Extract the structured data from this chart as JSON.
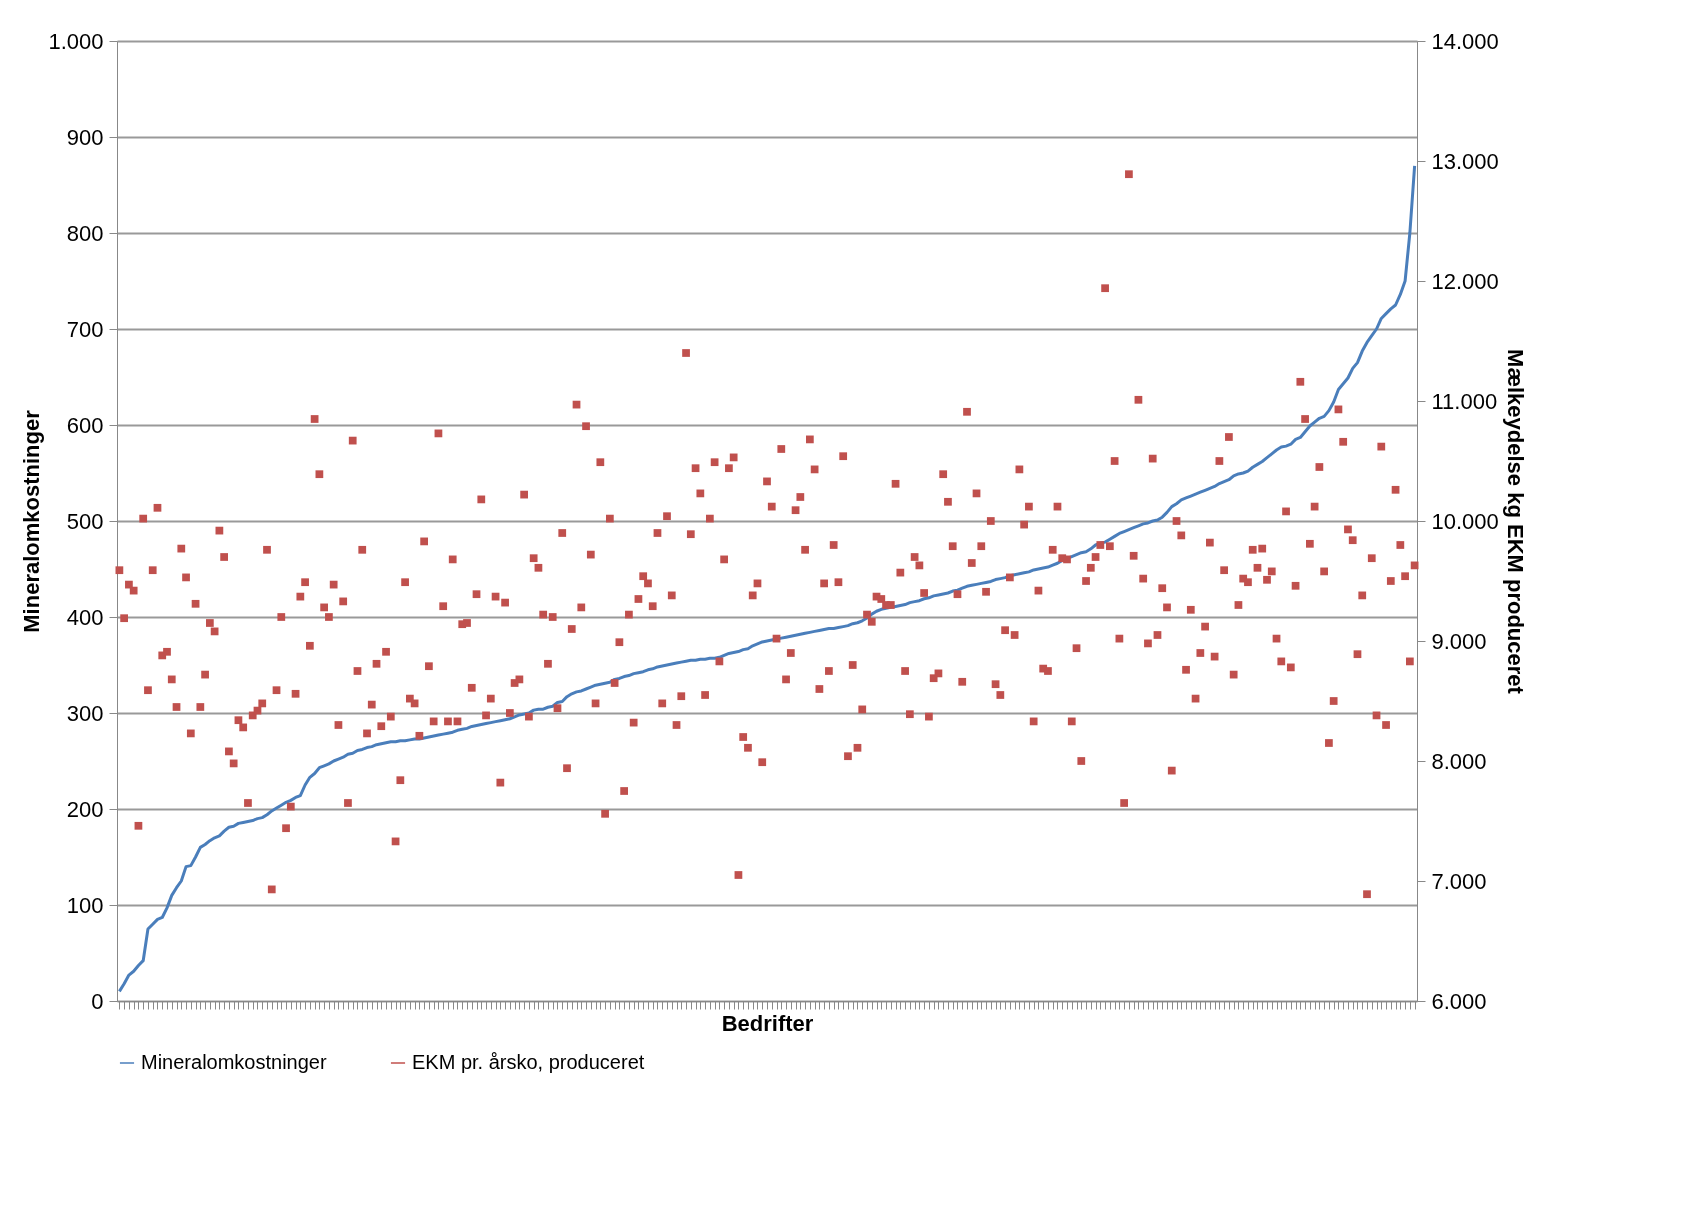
{
  "chart_data": {
    "type": "line",
    "xlabel": "Bedrifter",
    "ylabel": "Mineralomkostninger",
    "y2label": "Mælkeydelse  kg EKM produceret",
    "categories": [
      null,
      null,
      null,
      null,
      null,
      null,
      null,
      null,
      null,
      null,
      null,
      null,
      null,
      null,
      null,
      null,
      null,
      null,
      null,
      null,
      null,
      null,
      null,
      null,
      null,
      null,
      null,
      null,
      null,
      null,
      null,
      null,
      null,
      null,
      null,
      null,
      null,
      null,
      null,
      null,
      null,
      null,
      null,
      null,
      null,
      null,
      null,
      null,
      null,
      null,
      null,
      null,
      null,
      null,
      null,
      null,
      null,
      null,
      null,
      null,
      null,
      null,
      null,
      null,
      null,
      null,
      null,
      null,
      null,
      null,
      null,
      null,
      null,
      null,
      null,
      null,
      null,
      null,
      null,
      null,
      null,
      null,
      null,
      null,
      null,
      null,
      null,
      null,
      null,
      null,
      null,
      null,
      null,
      null,
      null,
      null,
      null,
      null,
      null,
      null,
      null,
      null,
      null,
      null,
      null,
      null,
      null,
      null,
      null,
      null,
      null,
      null,
      null,
      null,
      null,
      null,
      null,
      null,
      null,
      null,
      null,
      null,
      null,
      null,
      null,
      null,
      null,
      null,
      null,
      null,
      null,
      null,
      null,
      null,
      null,
      null,
      null,
      null,
      null,
      null,
      null,
      null,
      null,
      null,
      null,
      null,
      null,
      null,
      null,
      null,
      null,
      null,
      null,
      null,
      null,
      null,
      null,
      null,
      null,
      null,
      null,
      null,
      null,
      null,
      null,
      null,
      null,
      null,
      null,
      null,
      null,
      null,
      null,
      null,
      null,
      null,
      null,
      null,
      null,
      null,
      null,
      null,
      null,
      null,
      null,
      null,
      null,
      null,
      null,
      null,
      null,
      null,
      null,
      null,
      null,
      null,
      null,
      null,
      null,
      null,
      null,
      null,
      null,
      null,
      null,
      null,
      null,
      null,
      null,
      null,
      null,
      null,
      null,
      null,
      null,
      null,
      null,
      null,
      null,
      null,
      null,
      null,
      null,
      null,
      null,
      null,
      null,
      null,
      null,
      null,
      null,
      null,
      null,
      null,
      null,
      null,
      null,
      null,
      null,
      null,
      null,
      null,
      null,
      null,
      null,
      null,
      null,
      null,
      null,
      null,
      null,
      null,
      null,
      null,
      null,
      null,
      null,
      null,
      null,
      null,
      null,
      null,
      null,
      null,
      null,
      null,
      null,
      null,
      null,
      null,
      null,
      null,
      null
    ],
    "series": [
      {
        "name": "Mineralomkostninger",
        "color": "#4a7ebb",
        "marker": "none",
        "line_style": "solid",
        "values": [
          10,
          18,
          27,
          31,
          37,
          42,
          75,
          80,
          85,
          87,
          97,
          110,
          118,
          125,
          140,
          141,
          150,
          160,
          163,
          167,
          170,
          172,
          177,
          181,
          182,
          185,
          186,
          187,
          188,
          190,
          191,
          194,
          198,
          201,
          204,
          207,
          209,
          212,
          214,
          225,
          233,
          237,
          243,
          245,
          247,
          250,
          252,
          254,
          257,
          258,
          261,
          262,
          264,
          265,
          267,
          268,
          269,
          270,
          270,
          271,
          271,
          272,
          273,
          273,
          274,
          275,
          276,
          277,
          278,
          279,
          280,
          282,
          283,
          284,
          286,
          287,
          288,
          289,
          290,
          291,
          292,
          293,
          294,
          296,
          298,
          299,
          300,
          303,
          304,
          304,
          306,
          307,
          311,
          312,
          317,
          320,
          322,
          323,
          325,
          327,
          329,
          330,
          331,
          332,
          335,
          336,
          338,
          339,
          341,
          342,
          343,
          345,
          346,
          348,
          349,
          350,
          351,
          352,
          353,
          354,
          355,
          355,
          356,
          356,
          357,
          357,
          358,
          360,
          362,
          363,
          364,
          366,
          367,
          370,
          372,
          374,
          375,
          376,
          377,
          378,
          379,
          380,
          381,
          382,
          383,
          384,
          385,
          386,
          387,
          388,
          388,
          389,
          390,
          391,
          393,
          394,
          396,
          399,
          403,
          406,
          408,
          409,
          410,
          411,
          412,
          413,
          415,
          416,
          417,
          419,
          420,
          422,
          423,
          424,
          425,
          427,
          428,
          430,
          432,
          433,
          434,
          435,
          436,
          437,
          439,
          440,
          441,
          443,
          444,
          445,
          446,
          447,
          449,
          450,
          451,
          452,
          454,
          456,
          459,
          461,
          463,
          465,
          467,
          468,
          471,
          475,
          477,
          478,
          481,
          484,
          487,
          489,
          491,
          493,
          495,
          497,
          498,
          500,
          501,
          504,
          509,
          515,
          518,
          522,
          524,
          526,
          528,
          530,
          532,
          534,
          536,
          539,
          541,
          543,
          547,
          549,
          550,
          552,
          556,
          559,
          562,
          566,
          570,
          574,
          577,
          578,
          580,
          585,
          587,
          593,
          599,
          603,
          607,
          609,
          615,
          624,
          637,
          643,
          649,
          659,
          665,
          677,
          686,
          693,
          700,
          711,
          716,
          721,
          725,
          736,
          750,
          800,
          870
        ]
      },
      {
        "name": "EKM pr. årsko, produceret",
        "type": "scatter",
        "axis": "y2",
        "color": "#c0504d",
        "marker": "square",
        "values": [
          9590,
          9190,
          9470,
          9420,
          7460,
          10020,
          8590,
          9590,
          10110,
          8880,
          8910,
          8680,
          8450,
          9770,
          9530,
          8230,
          9310,
          8450,
          8720,
          9150,
          9080,
          9920,
          9700,
          8080,
          7980,
          8340,
          8280,
          7650,
          8380,
          8420,
          8480,
          9760,
          6930,
          8590,
          9200,
          7440,
          7620,
          8560,
          9370,
          9490,
          8960,
          10850,
          10390,
          9280,
          9200,
          9470,
          8300,
          9330,
          7650,
          10670,
          8750,
          9760,
          8230,
          8470,
          8810,
          8290,
          8910,
          8370,
          7330,
          7840,
          9490,
          8520,
          8480,
          8210,
          9830,
          8790,
          8330,
          10730,
          9290,
          8330,
          9680,
          8330,
          9140,
          9150,
          8610,
          9390,
          10180,
          8380,
          8520,
          9370,
          7820,
          9320,
          8400,
          8650,
          8680,
          10220,
          8370,
          9690,
          9610,
          9220,
          8810,
          9200,
          8440,
          9900,
          7940,
          9100,
          10970,
          9280,
          10790,
          9720,
          8480,
          10490,
          7560,
          10020,
          8650,
          8990,
          7750,
          9220,
          8320,
          9350,
          9540,
          9480,
          9290,
          9900,
          8480,
          10040,
          9380,
          8300,
          8540,
          11400,
          9890,
          10440,
          10230,
          8550,
          10020,
          10490,
          8830,
          9680,
          10440,
          10530,
          7050,
          8200,
          8110,
          9380,
          9480,
          7990,
          10330,
          10120,
          9020,
          10600,
          8680,
          8900,
          10090,
          10200,
          9760,
          10680,
          10430,
          8600,
          9480,
          8750,
          9800,
          9490,
          10540,
          8040,
          8800,
          8110,
          8430,
          9220,
          9160,
          9370,
          9350,
          9300,
          9300,
          10310,
          9570,
          8750,
          8390,
          9700,
          9630,
          9400,
          8370,
          8690,
          8730,
          10390,
          10160,
          9790,
          9390,
          8660,
          10910,
          9650,
          10230,
          9790,
          9410,
          10000,
          8640,
          8550,
          9090,
          9530,
          9050,
          10430,
          9970,
          10120,
          8330,
          9420,
          8770,
          8750,
          9760,
          10120,
          9690,
          9680,
          8330,
          8940,
          8000,
          9500,
          9610,
          9700,
          9800,
          11940,
          9790,
          10500,
          9020,
          7650,
          12890,
          9710,
          11010,
          9520,
          8980,
          10520,
          9050,
          9440,
          9280,
          7920,
          10000,
          9880,
          8760,
          9260,
          8520,
          8900,
          9120,
          9820,
          8870,
          10500,
          9590,
          10700,
          8720,
          9300,
          9520,
          9490,
          9760,
          9610,
          9770,
          9510,
          9580,
          9020,
          8830,
          10080,
          8780,
          9460,
          11160,
          10850,
          9810,
          10120,
          10450,
          9580,
          8150,
          8500,
          10930,
          10660,
          9930,
          9840,
          8890,
          9380,
          6890,
          9690,
          8380,
          10620,
          8300,
          9500,
          10260,
          9800,
          9540,
          8830,
          9630
        ]
      }
    ],
    "ylim": [
      0,
      1000
    ],
    "yticks": [
      0,
      100,
      200,
      300,
      400,
      500,
      600,
      700,
      800,
      900,
      {
        "value": 1000,
        "label": "1.000"
      }
    ],
    "y2lim": [
      6000,
      14000
    ],
    "y2ticks": [
      {
        "value": 6000,
        "label": "6.000"
      },
      {
        "value": 7000,
        "label": "7.000"
      },
      {
        "value": 8000,
        "label": "8.000"
      },
      {
        "value": 9000,
        "label": "9.000"
      },
      {
        "value": 10000,
        "label": "10.000"
      },
      {
        "value": 11000,
        "label": "11.000"
      },
      {
        "value": 12000,
        "label": "12.000"
      },
      {
        "value": 13000,
        "label": "13.000"
      },
      {
        "value": 14000,
        "label": "14.000"
      }
    ],
    "grid": "y",
    "legend": "bottom",
    "tick_labels": "y"
  }
}
